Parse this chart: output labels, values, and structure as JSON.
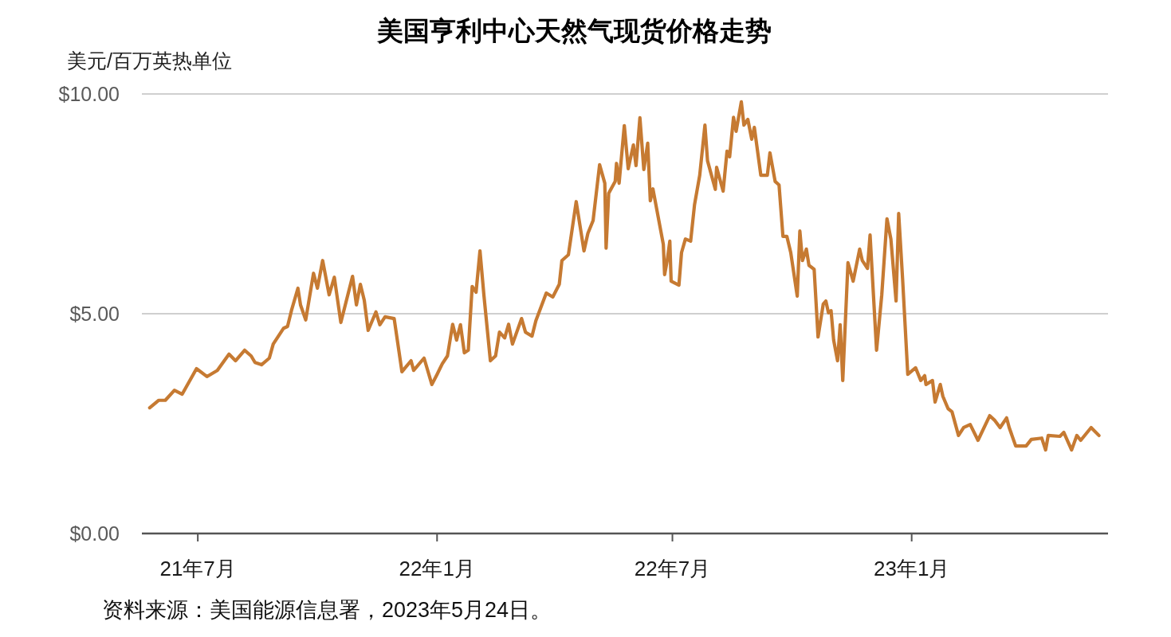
{
  "chart_data": {
    "type": "line",
    "title": "美国亨利中心天然气现货价格走势",
    "ylabel": "美元/百万英热单位",
    "annotations": [
      "资料来源：美国能源信息署，2023年5月24日。"
    ],
    "x": [
      "2021-05-25",
      "2021-06-01",
      "2021-06-06",
      "2021-06-13",
      "2021-06-19",
      "2021-06-30",
      "2021-07-08",
      "2021-07-16",
      "2021-07-25",
      "2021-07-30",
      "2021-08-06",
      "2021-08-11",
      "2021-08-14",
      "2021-08-19",
      "2021-08-25",
      "2021-08-28",
      "2021-09-05",
      "2021-09-08",
      "2021-09-11",
      "2021-09-16",
      "2021-09-18",
      "2021-09-22",
      "2021-09-28",
      "2021-10-01",
      "2021-10-05",
      "2021-10-10",
      "2021-10-14",
      "2021-10-19",
      "2021-10-28",
      "2021-10-31",
      "2021-11-03",
      "2021-11-06",
      "2021-11-09",
      "2021-11-15",
      "2021-11-18",
      "2021-11-22",
      "2021-11-29",
      "2021-12-05",
      "2021-12-12",
      "2021-12-14",
      "2021-12-22",
      "2021-12-28",
      "2022-01-01",
      "2022-01-05",
      "2022-01-09",
      "2022-01-13",
      "2022-01-16",
      "2022-01-19",
      "2022-01-22",
      "2022-01-25",
      "2022-01-28",
      "2022-01-31",
      "2022-02-03",
      "2022-02-06",
      "2022-02-11",
      "2022-02-15",
      "2022-02-18",
      "2022-02-22",
      "2022-02-25",
      "2022-02-28",
      "2022-03-07",
      "2022-03-10",
      "2022-03-15",
      "2022-03-18",
      "2022-03-26",
      "2022-03-31",
      "2022-04-05",
      "2022-04-07",
      "2022-04-12",
      "2022-04-18",
      "2022-04-24",
      "2022-04-27",
      "2022-05-01",
      "2022-05-06",
      "2022-05-10",
      "2022-05-11",
      "2022-05-13",
      "2022-05-18",
      "2022-05-19",
      "2022-05-21",
      "2022-05-25",
      "2022-05-28",
      "2022-06-01",
      "2022-06-03",
      "2022-06-06",
      "2022-06-09",
      "2022-06-12",
      "2022-06-14",
      "2022-06-16",
      "2022-06-24",
      "2022-06-25",
      "2022-06-27",
      "2022-06-29",
      "2022-06-30",
      "2022-07-06",
      "2022-07-08",
      "2022-07-11",
      "2022-07-15",
      "2022-07-18",
      "2022-07-22",
      "2022-07-26",
      "2022-07-28",
      "2022-08-03",
      "2022-08-04",
      "2022-08-09",
      "2022-08-12",
      "2022-08-14",
      "2022-08-17",
      "2022-08-19",
      "2022-08-23",
      "2022-08-25",
      "2022-08-28",
      "2022-08-31",
      "2022-09-02",
      "2022-09-07",
      "2022-09-12",
      "2022-09-14",
      "2022-09-18",
      "2022-09-21",
      "2022-09-24",
      "2022-09-27",
      "2022-09-30",
      "2022-10-05",
      "2022-10-07",
      "2022-10-09",
      "2022-10-12",
      "2022-10-14",
      "2022-10-18",
      "2022-10-21",
      "2022-10-25",
      "2022-10-27",
      "2022-10-29",
      "2022-10-31",
      "2022-11-02",
      "2022-11-05",
      "2022-11-07",
      "2022-11-09",
      "2022-11-13",
      "2022-11-17",
      "2022-11-22",
      "2022-11-24",
      "2022-11-28",
      "2022-11-30",
      "2022-12-05",
      "2022-12-09",
      "2022-12-13",
      "2022-12-16",
      "2022-12-20",
      "2022-12-22",
      "2022-12-25",
      "2022-12-29",
      "2023-01-04",
      "2023-01-08",
      "2023-01-11",
      "2023-01-12",
      "2023-01-17",
      "2023-01-19",
      "2023-01-23",
      "2023-01-25",
      "2023-01-29",
      "2023-02-01",
      "2023-02-06",
      "2023-02-10",
      "2023-02-15",
      "2023-02-21",
      "2023-03-02",
      "2023-03-06",
      "2023-03-10",
      "2023-03-15",
      "2023-03-17",
      "2023-03-22",
      "2023-03-30",
      "2023-04-03",
      "2023-04-11",
      "2023-04-14",
      "2023-04-16",
      "2023-04-25",
      "2023-04-28",
      "2023-05-04",
      "2023-05-08",
      "2023-05-11",
      "2023-05-19",
      "2023-05-25"
    ],
    "series": [
      {
        "color": "#c67a32",
        "values": [
          2.86,
          3.03,
          3.03,
          3.26,
          3.17,
          3.75,
          3.57,
          3.71,
          4.08,
          3.93,
          4.17,
          4.04,
          3.89,
          3.84,
          3.99,
          4.31,
          4.67,
          4.71,
          5.07,
          5.58,
          5.2,
          4.86,
          5.92,
          5.58,
          6.21,
          5.43,
          5.83,
          4.8,
          5.85,
          5.2,
          5.67,
          5.31,
          4.62,
          5.04,
          4.75,
          4.93,
          4.89,
          3.68,
          3.93,
          3.71,
          3.99,
          3.39,
          3.62,
          3.86,
          4.04,
          4.76,
          4.4,
          4.75,
          4.11,
          4.17,
          5.62,
          5.49,
          6.43,
          5.43,
          3.93,
          4.04,
          4.58,
          4.45,
          4.76,
          4.31,
          4.89,
          4.58,
          4.49,
          4.84,
          5.47,
          5.38,
          5.67,
          6.21,
          6.34,
          7.55,
          6.43,
          6.83,
          7.12,
          8.39,
          7.97,
          6.49,
          7.74,
          8.01,
          8.42,
          7.97,
          9.28,
          8.3,
          8.84,
          8.37,
          9.46,
          8.28,
          8.88,
          7.57,
          7.84,
          6.58,
          5.89,
          6.21,
          6.65,
          5.74,
          5.65,
          6.39,
          6.7,
          6.65,
          7.48,
          8.15,
          9.29,
          8.48,
          7.83,
          8.33,
          7.79,
          8.7,
          8.57,
          9.47,
          9.15,
          9.82,
          9.29,
          9.42,
          8.97,
          9.24,
          8.15,
          8.15,
          8.66,
          8.01,
          7.93,
          6.76,
          6.76,
          6.39,
          5.4,
          6.88,
          6.21,
          6.47,
          6.1,
          6.01,
          4.47,
          5.22,
          5.29,
          5.02,
          5.07,
          4.4,
          3.93,
          4.75,
          3.48,
          6.16,
          5.74,
          6.47,
          6.21,
          6.03,
          6.79,
          4.17,
          5.43,
          7.16,
          6.7,
          5.29,
          7.28,
          5.8,
          3.62,
          3.77,
          3.48,
          3.59,
          3.39,
          3.48,
          2.99,
          3.39,
          3.12,
          2.84,
          2.77,
          2.23,
          2.41,
          2.48,
          2.12,
          2.68,
          2.57,
          2.41,
          2.63,
          2.41,
          1.99,
          1.99,
          2.14,
          2.17,
          1.9,
          2.23,
          2.21,
          2.3,
          1.9,
          2.23,
          2.12,
          2.41,
          2.23
        ]
      }
    ],
    "xlim": [
      "2021-05-19",
      "2023-06-01"
    ],
    "xticks": [
      {
        "value": "2021-07-01",
        "label": "21年7月"
      },
      {
        "value": "2022-01-01",
        "label": "22年1月"
      },
      {
        "value": "2022-07-01",
        "label": "22年7月"
      },
      {
        "value": "2023-01-01",
        "label": "23年1月"
      }
    ],
    "ylim": [
      0,
      10
    ],
    "yticks": [
      {
        "value": 0,
        "label": "$0.00"
      },
      {
        "value": 5,
        "label": "$5.00"
      },
      {
        "value": 10,
        "label": "$10.00"
      }
    ],
    "grid": "y",
    "line_style": "solid"
  }
}
